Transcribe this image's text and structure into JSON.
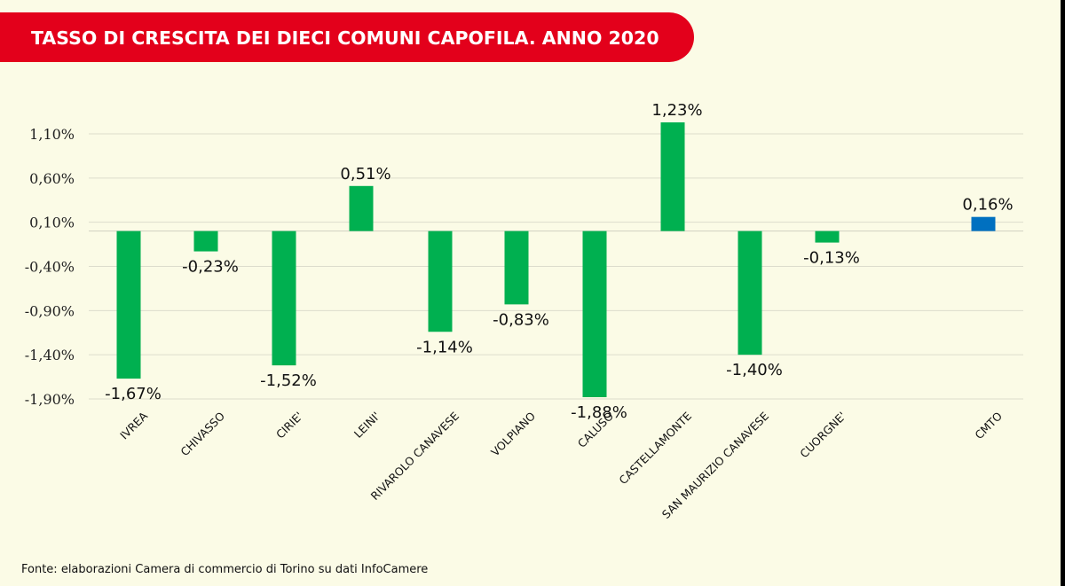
{
  "title": "TASSO DI CRESCITA DEI DIECI COMUNI CAPOFILA. ANNO 2020",
  "source": "Fonte: elaborazioni Camera di commercio di Torino su dati InfoCamere",
  "colors": {
    "banner": "#e3001b",
    "background": "#fbfbe6",
    "bar_comuni": "#00b050",
    "bar_cmto": "#0070c0",
    "grid": "#dcdccc"
  },
  "chart_data": {
    "type": "bar",
    "title": "TASSO DI CRESCITA DEI DIECI COMUNI CAPOFILA. ANNO 2020",
    "xlabel": "",
    "ylabel": "",
    "ylim": [
      -1.9,
      1.1
    ],
    "yticks": [
      "1,10%",
      "0,60%",
      "0,10%",
      "-0,40%",
      "-0,90%",
      "-1,40%",
      "-1,90%"
    ],
    "ytick_values": [
      1.1,
      0.6,
      0.1,
      -0.4,
      -0.9,
      -1.4,
      -1.9
    ],
    "grid": true,
    "legend": "none",
    "categories": [
      "IVREA",
      "CHIVASSO",
      "CIRIE'",
      "LEINI'",
      "RIVAROLO CANAVESE",
      "VOLPIANO",
      "CALUSO",
      "CASTELLAMONTE",
      "SAN MAURIZIO CANAVESE",
      "CUORGNE'",
      "CMTO"
    ],
    "values": [
      -1.67,
      -0.23,
      -1.52,
      0.51,
      -1.14,
      -0.83,
      -1.88,
      1.23,
      -1.4,
      -0.13,
      0.16
    ],
    "data_labels": [
      "-1,67%",
      "-0,23%",
      "-1,52%",
      "0,51%",
      "-1,14%",
      "-0,83%",
      "-1,88%",
      "1,23%",
      "-1,40%",
      "-0,13%",
      "0,16%"
    ],
    "bar_colors": [
      "#00b050",
      "#00b050",
      "#00b050",
      "#00b050",
      "#00b050",
      "#00b050",
      "#00b050",
      "#00b050",
      "#00b050",
      "#00b050",
      "#0070c0"
    ]
  }
}
